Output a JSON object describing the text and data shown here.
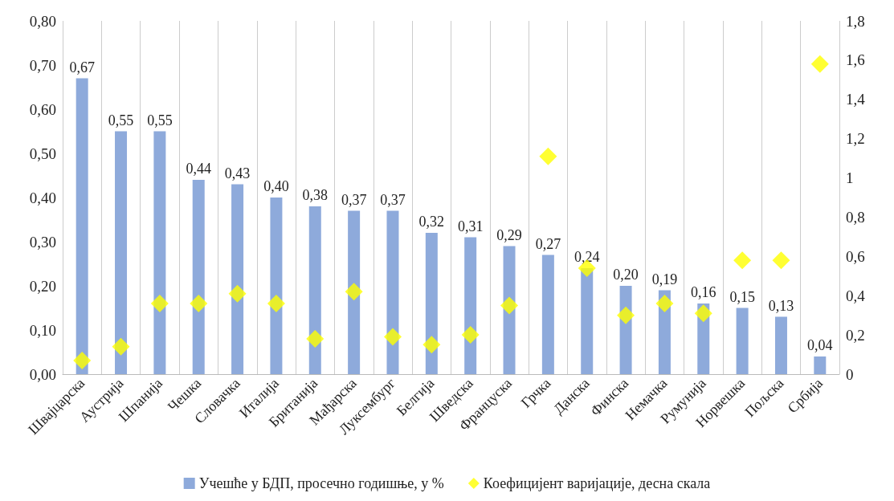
{
  "chart_data": {
    "type": "bar",
    "categories": [
      "Швајцарска",
      "Аустрија",
      "Шпанија",
      "Чешка",
      "Словачка",
      "Италија",
      "Британија",
      "Мађарска",
      "Луксембург",
      "Белгија",
      "Шведска",
      "Француска",
      "Грчка",
      "Данска",
      "Финска",
      "Немачка",
      "Румунија",
      "Норвешка",
      "Пољска",
      "Србија"
    ],
    "series": [
      {
        "name": "Учешће у БДП, просечно годишње, у %",
        "color": "#8eaadb",
        "values": [
          0.67,
          0.55,
          0.55,
          0.44,
          0.43,
          0.4,
          0.38,
          0.37,
          0.37,
          0.32,
          0.31,
          0.29,
          0.27,
          0.24,
          0.2,
          0.19,
          0.16,
          0.15,
          0.13,
          0.04
        ],
        "value_labels": [
          "0,67",
          "0,55",
          "0,55",
          "0,44",
          "0,43",
          "0,40",
          "0,38",
          "0,37",
          "0,37",
          "0,32",
          "0,31",
          "0,29",
          "0,27",
          "0,24",
          "0,20",
          "0,19",
          "0,16",
          "0,15",
          "0,13",
          "0,04"
        ]
      },
      {
        "name": "Коефицијент варијације, десна скала",
        "type": "scatter",
        "axis": "y2",
        "marker": "diamond",
        "color": "#ffff00",
        "values": [
          0.07,
          0.14,
          0.36,
          0.36,
          0.41,
          0.36,
          0.18,
          0.42,
          0.19,
          0.15,
          0.2,
          0.35,
          1.11,
          0.54,
          0.3,
          0.36,
          0.31,
          0.58,
          0.58,
          1.58
        ]
      }
    ],
    "ylim": [
      0,
      0.8
    ],
    "yticks": [
      {
        "value": 0,
        "label": "0,00"
      },
      {
        "value": 0.1,
        "label": "0,10"
      },
      {
        "value": 0.2,
        "label": "0,20"
      },
      {
        "value": 0.3,
        "label": "0,30"
      },
      {
        "value": 0.4,
        "label": "0,40"
      },
      {
        "value": 0.5,
        "label": "0,50"
      },
      {
        "value": 0.6,
        "label": "0,60"
      },
      {
        "value": 0.7,
        "label": "0,70"
      },
      {
        "value": 0.8,
        "label": "0,80"
      }
    ],
    "y2lim": [
      0,
      1.8
    ],
    "y2ticks": [
      0,
      {
        "value": 0.2,
        "label": "0,2"
      },
      {
        "value": 0.4,
        "label": "0,4"
      },
      {
        "value": 0.6,
        "label": "0,6"
      },
      {
        "value": 0.8,
        "label": "0,8"
      },
      1,
      {
        "value": 1.2,
        "label": "1,2"
      },
      {
        "value": 1.4,
        "label": "1,4"
      },
      {
        "value": 1.6,
        "label": "1,6"
      },
      {
        "value": 1.8,
        "label": "1,8"
      }
    ],
    "grid": "x",
    "legend": "bottom"
  }
}
